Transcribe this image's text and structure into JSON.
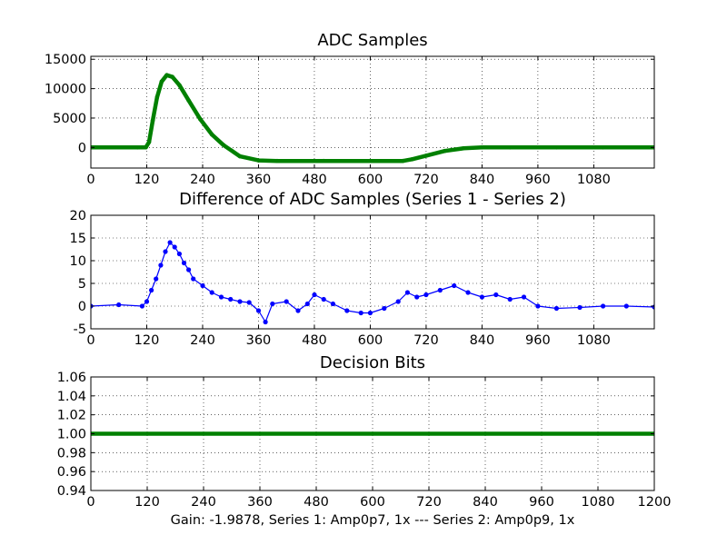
{
  "figure": {
    "footer_text": "Gain: -1.9878, Series 1: Amp0p7, 1x --- Series 2: Amp0p9, 1x"
  },
  "chart_data": [
    {
      "type": "scatter",
      "title": "ADC Samples",
      "xlabel": "",
      "ylabel": "",
      "xlim": [
        0,
        1210
      ],
      "ylim": [
        -3500,
        15500
      ],
      "xticks": [
        0,
        120,
        240,
        360,
        480,
        600,
        720,
        840,
        960,
        1080
      ],
      "yticks": [
        0,
        5000,
        10000,
        15000
      ],
      "grid": true,
      "legend": "none",
      "series": [
        {
          "name": "ADC samples",
          "color": "#008000",
          "marker": "dot",
          "line": true,
          "points": [
            [
              0,
              0
            ],
            [
              100,
              0
            ],
            [
              118,
              20
            ],
            [
              125,
              900
            ],
            [
              133,
              4600
            ],
            [
              142,
              8500
            ],
            [
              152,
              11200
            ],
            [
              163,
              12300
            ],
            [
              175,
              12000
            ],
            [
              190,
              10600
            ],
            [
              210,
              8000
            ],
            [
              235,
              4800
            ],
            [
              260,
              2200
            ],
            [
              285,
              400
            ],
            [
              320,
              -1500
            ],
            [
              360,
              -2200
            ],
            [
              400,
              -2300
            ],
            [
              500,
              -2300
            ],
            [
              600,
              -2300
            ],
            [
              670,
              -2300
            ],
            [
              690,
              -2000
            ],
            [
              720,
              -1400
            ],
            [
              760,
              -600
            ],
            [
              800,
              -150
            ],
            [
              840,
              0
            ],
            [
              900,
              0
            ],
            [
              1000,
              0
            ],
            [
              1100,
              0
            ],
            [
              1210,
              0
            ]
          ]
        }
      ]
    },
    {
      "type": "line",
      "title": "Difference of ADC Samples (Series 1 - Series 2)",
      "xlabel": "",
      "ylabel": "",
      "xlim": [
        0,
        1210
      ],
      "ylim": [
        -5,
        20
      ],
      "xticks": [
        0,
        120,
        240,
        360,
        480,
        600,
        720,
        840,
        960,
        1080
      ],
      "yticks": [
        -5,
        0,
        5,
        10,
        15,
        20
      ],
      "grid": true,
      "legend": "none",
      "series": [
        {
          "name": "Difference",
          "color": "#0000ff",
          "marker": "dot",
          "line": true,
          "points": [
            [
              0,
              0
            ],
            [
              60,
              0.3
            ],
            [
              110,
              0
            ],
            [
              120,
              1
            ],
            [
              130,
              3.5
            ],
            [
              140,
              6
            ],
            [
              150,
              9
            ],
            [
              160,
              12
            ],
            [
              170,
              14
            ],
            [
              180,
              13
            ],
            [
              190,
              11.5
            ],
            [
              200,
              9.5
            ],
            [
              210,
              8
            ],
            [
              220,
              6
            ],
            [
              240,
              4.5
            ],
            [
              260,
              3
            ],
            [
              280,
              2
            ],
            [
              300,
              1.5
            ],
            [
              320,
              1
            ],
            [
              340,
              0.8
            ],
            [
              360,
              -1
            ],
            [
              375,
              -3.5
            ],
            [
              390,
              0.5
            ],
            [
              420,
              1
            ],
            [
              445,
              -1
            ],
            [
              465,
              0.5
            ],
            [
              480,
              2.5
            ],
            [
              500,
              1.5
            ],
            [
              520,
              0.5
            ],
            [
              550,
              -1
            ],
            [
              580,
              -1.5
            ],
            [
              600,
              -1.5
            ],
            [
              630,
              -0.5
            ],
            [
              660,
              1
            ],
            [
              680,
              3
            ],
            [
              700,
              2
            ],
            [
              720,
              2.5
            ],
            [
              750,
              3.5
            ],
            [
              780,
              4.5
            ],
            [
              810,
              3
            ],
            [
              840,
              2
            ],
            [
              870,
              2.5
            ],
            [
              900,
              1.5
            ],
            [
              930,
              2
            ],
            [
              960,
              0
            ],
            [
              1000,
              -0.5
            ],
            [
              1050,
              -0.3
            ],
            [
              1100,
              0
            ],
            [
              1150,
              0
            ],
            [
              1210,
              -0.2
            ]
          ]
        }
      ]
    },
    {
      "type": "scatter",
      "title": "Decision Bits",
      "xlabel": "Gain: -1.9878, Series 1: Amp0p7, 1x --- Series 2: Amp0p9, 1x",
      "ylabel": "",
      "xlim": [
        0,
        1200
      ],
      "ylim": [
        0.94,
        1.06
      ],
      "xticks": [
        0,
        120,
        240,
        360,
        480,
        600,
        720,
        840,
        960,
        1080,
        1200
      ],
      "yticks": [
        0.94,
        0.96,
        0.98,
        1.0,
        1.02,
        1.04,
        1.06
      ],
      "grid": true,
      "legend": "none",
      "series": [
        {
          "name": "Decision bits",
          "color": "#008000",
          "marker": "dot",
          "line": true,
          "points": [
            [
              0,
              1.0
            ],
            [
              1200,
              1.0
            ]
          ]
        }
      ]
    }
  ]
}
